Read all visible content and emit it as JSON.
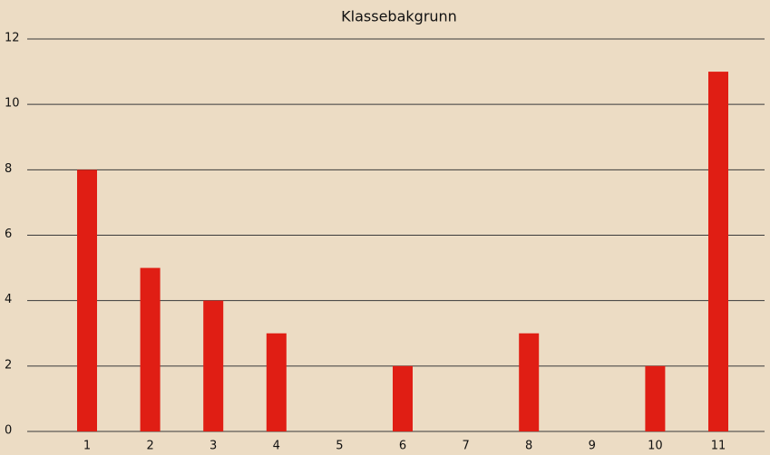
{
  "chart_data": {
    "type": "bar",
    "title": "Klassebakgrunn",
    "categories": [
      "1",
      "2",
      "3",
      "4",
      "5",
      "6",
      "7",
      "8",
      "9",
      "10",
      "11"
    ],
    "values": [
      8,
      5,
      4,
      3,
      0,
      2,
      0,
      3,
      0,
      2,
      11
    ],
    "color": "#e01e14",
    "ylim": [
      0,
      12
    ],
    "yticks": [
      0,
      2,
      4,
      6,
      8,
      10,
      12
    ],
    "grid": true
  }
}
